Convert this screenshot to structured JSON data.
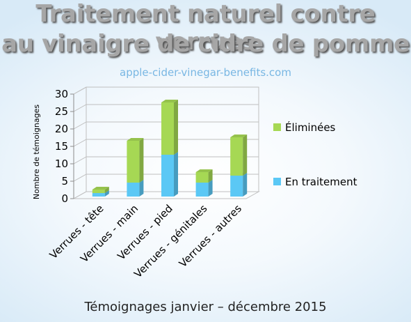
{
  "header": {
    "title_line1": "Traitement naturel contre verrues",
    "title_line2": "au vinaigre de cidre de pomme",
    "source": "apple-cider-vinegar-benefits.com"
  },
  "footer": {
    "text": "Témoignages janvier – décembre 2015"
  },
  "chart_data": {
    "type": "bar",
    "stacked": true,
    "three_d": true,
    "categories": [
      "Verrues - tête",
      "Verrues - main",
      "Verrues - pied",
      "Verrues - génitales",
      "Verrues - autres"
    ],
    "series": [
      {
        "name": "En traitement",
        "color": "#5bc8f5",
        "values": [
          1,
          4,
          12,
          4,
          6
        ]
      },
      {
        "name": "Éliminées",
        "color": "#a6d854",
        "values": [
          1,
          12,
          15,
          3,
          11
        ]
      }
    ],
    "ylabel": "Nombre de témoignages",
    "xlabel": "",
    "ylim": [
      0,
      30
    ],
    "yticks": [
      0,
      5,
      10,
      15,
      20,
      25,
      30
    ],
    "grid": true,
    "legend_position": "right",
    "legend_order": [
      "Éliminées",
      "En traitement"
    ]
  }
}
